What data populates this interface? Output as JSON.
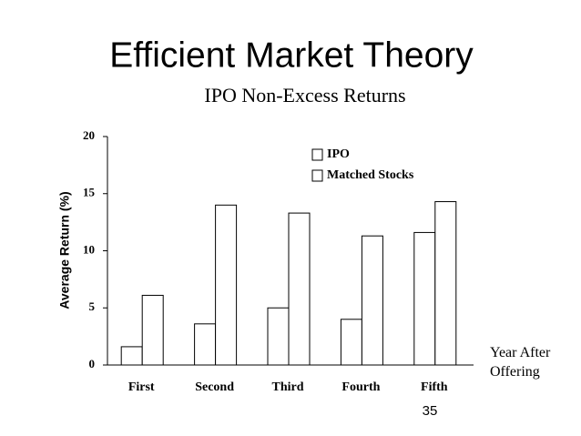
{
  "slide_title": "Efficient Market Theory",
  "page_number": "35",
  "chart_data": {
    "type": "bar",
    "title": "IPO Non-Excess Returns",
    "y_label": "Average Return (%)",
    "x_label": "Year After Offering",
    "categories": [
      "First",
      "Second",
      "Third",
      "Fourth",
      "Fifth"
    ],
    "series": [
      {
        "name": "IPO",
        "color": "#ffffff",
        "values": [
          1.6,
          3.6,
          5.0,
          4.0,
          11.6
        ]
      },
      {
        "name": "Matched Stocks",
        "color": "#ffffff",
        "values": [
          6.1,
          14.0,
          13.3,
          11.3,
          14.3
        ]
      }
    ],
    "ylim": [
      0,
      20
    ],
    "yticks": [
      0,
      5,
      10,
      15,
      20
    ],
    "grid": false,
    "legend": "top-right"
  }
}
